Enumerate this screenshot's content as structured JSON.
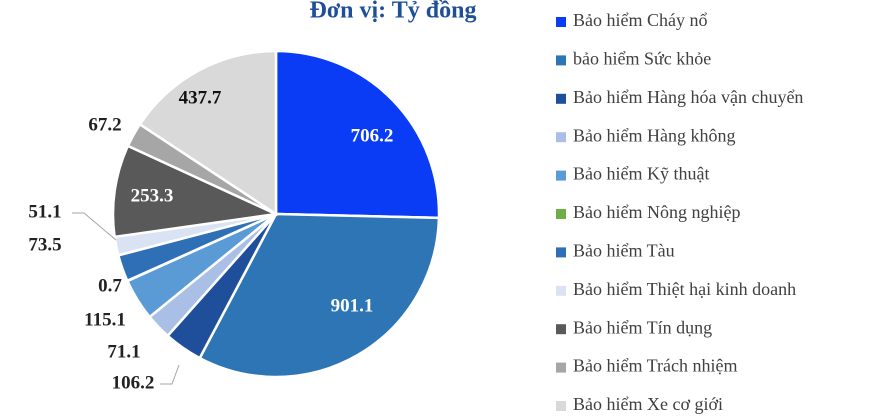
{
  "chart_data": {
    "type": "pie",
    "title": "Đơn vị: Tỷ đồng",
    "categories": [
      "Bảo hiểm Cháy nổ",
      "bảo hiểm Sức khỏe",
      "Bảo hiểm Hàng hóa vận chuyển",
      "Bảo hiểm Hàng không",
      "Bảo hiểm Kỹ thuật",
      "Bảo hiểm Nông nghiệp",
      "Bảo hiểm Tàu",
      "Bảo hiểm Thiệt hại kinh doanh",
      "Bảo hiểm Tín dụng",
      "Bảo hiểm Trách nhiệm",
      "Bảo hiểm Xe cơ giới"
    ],
    "values": [
      706.2,
      901.1,
      106.2,
      71.1,
      115.1,
      0.7,
      73.5,
      51.1,
      253.3,
      67.2,
      437.7
    ],
    "colors": [
      "#0a3cf5",
      "#2e75b6",
      "#1f4e9a",
      "#a9bfe6",
      "#5b9bd5",
      "#70ad47",
      "#2f6fb5",
      "#dae3f3",
      "#595959",
      "#a6a6a6",
      "#d9d9d9"
    ],
    "legend": "right"
  }
}
